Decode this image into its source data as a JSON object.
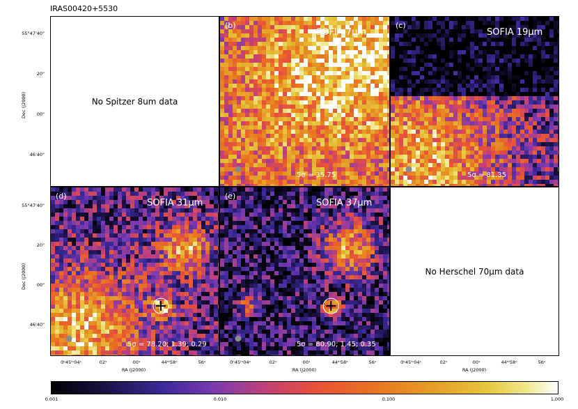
{
  "source_name": "IRAS00420+5530",
  "chart_data": [
    {
      "type": "heatmap",
      "panel": "a",
      "label": "",
      "name": "",
      "sigma_text": "",
      "no_data_text": "No Spitzer 8um data"
    },
    {
      "type": "heatmap",
      "panel": "b",
      "label": "(b)",
      "name": "SOFIA 7μm",
      "sigma_text": "5σ = 35.75"
    },
    {
      "type": "heatmap",
      "panel": "c",
      "label": "(c)",
      "name": "SOFIA 19μm",
      "sigma_text": "5σ = 81.35"
    },
    {
      "type": "heatmap",
      "panel": "d",
      "label": "(d)",
      "name": "SOFIA 31μm",
      "sigma_text": "5σ = 78.20; 1.39; 0.29"
    },
    {
      "type": "heatmap",
      "panel": "e",
      "label": "(e)",
      "name": "SOFIA 37μm",
      "sigma_text": "5σ = 80.90; 1.45; 0.35"
    },
    {
      "type": "heatmap",
      "panel": "f",
      "label": "",
      "name": "",
      "sigma_text": "",
      "no_data_text": "No Herschel 70μm data"
    }
  ],
  "axes": {
    "ylabel": "Dec (J2000)",
    "xlabel": "RA (J2000)",
    "yticks": [
      "55°47'40\"",
      "20\"",
      "00\"",
      "46'40\""
    ],
    "xticks": [
      "0ʰ45ᵐ04ˢ",
      "02ˢ",
      "00ˢ",
      "44ᵐ58ˢ",
      "56ˢ"
    ]
  },
  "colorbar": {
    "colormap": "CMRmap",
    "scale": "log",
    "range": [
      0.001,
      1.0
    ],
    "ticks": [
      "0.001",
      "0.010",
      "0.100",
      "1.000"
    ]
  }
}
